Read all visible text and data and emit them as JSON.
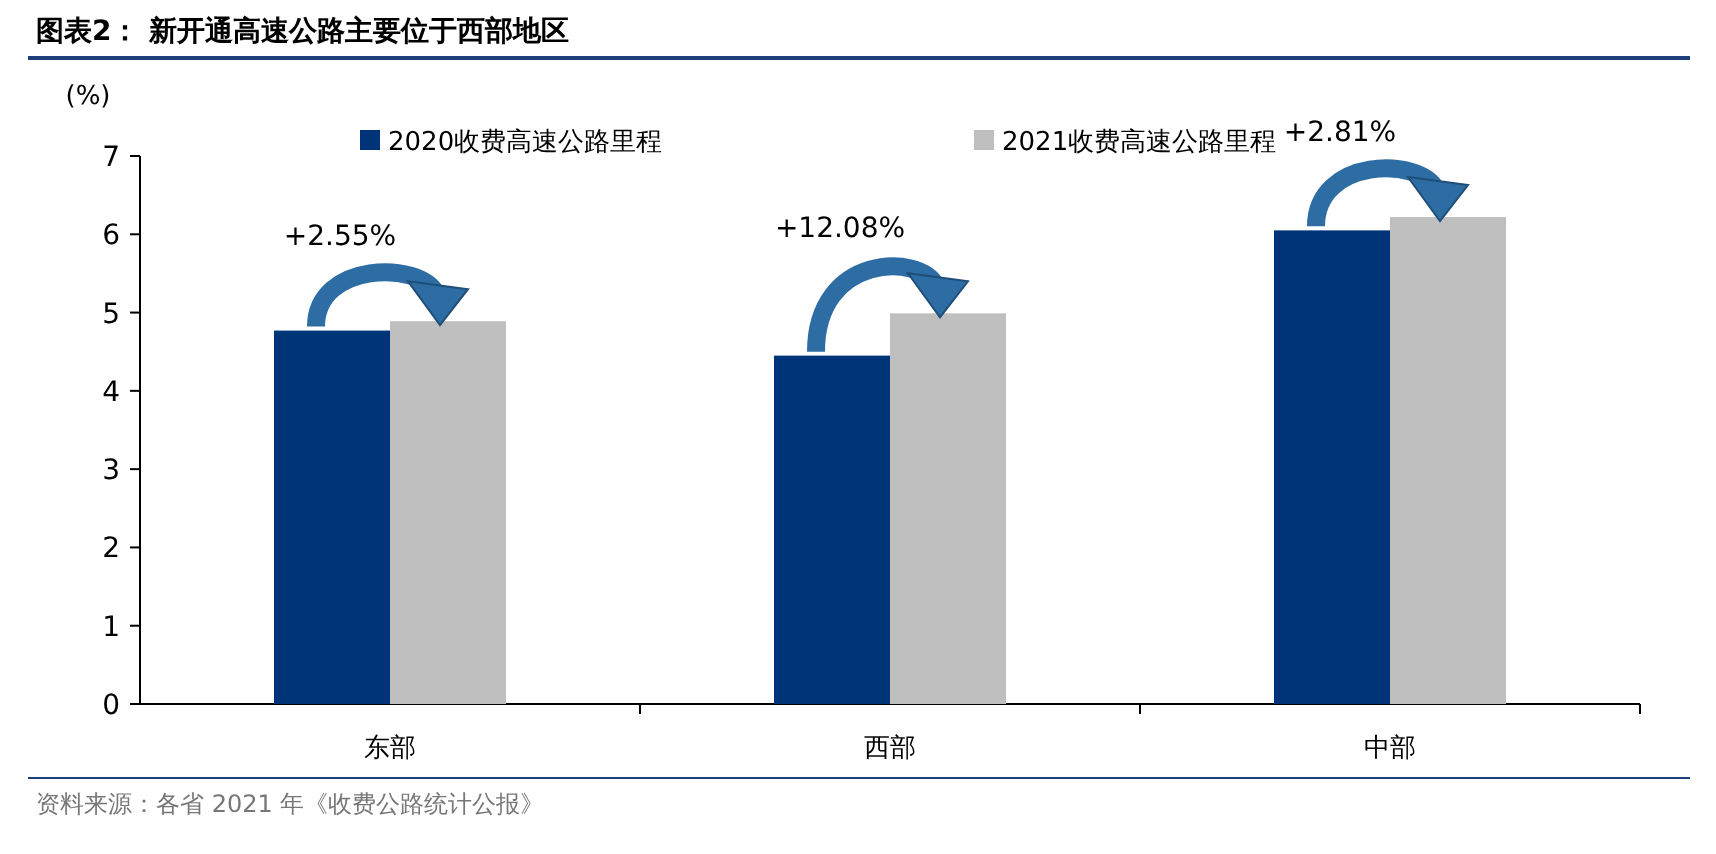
{
  "chart_data": {
    "type": "bar",
    "title": "图表2：  新开通高速公路主要位于西部地区",
    "ylabel": "(%)",
    "categories": [
      "东部",
      "西部",
      "中部"
    ],
    "series": [
      {
        "name": "2020收费高速公路里程",
        "color": "#003478",
        "values": [
          4.77,
          4.45,
          6.05
        ]
      },
      {
        "name": "2021收费高速公路里程",
        "color": "#bfbfbf",
        "values": [
          4.89,
          4.99,
          6.22
        ]
      }
    ],
    "ylim": [
      0,
      7
    ],
    "yticks": [
      0,
      1,
      2,
      3,
      4,
      5,
      6,
      7
    ],
    "legend": "top",
    "annotations": [
      "+2.55%",
      "+12.08%",
      "+2.81%",
      "资料来源：各省 2021 年《收费公路统计公报》"
    ]
  }
}
